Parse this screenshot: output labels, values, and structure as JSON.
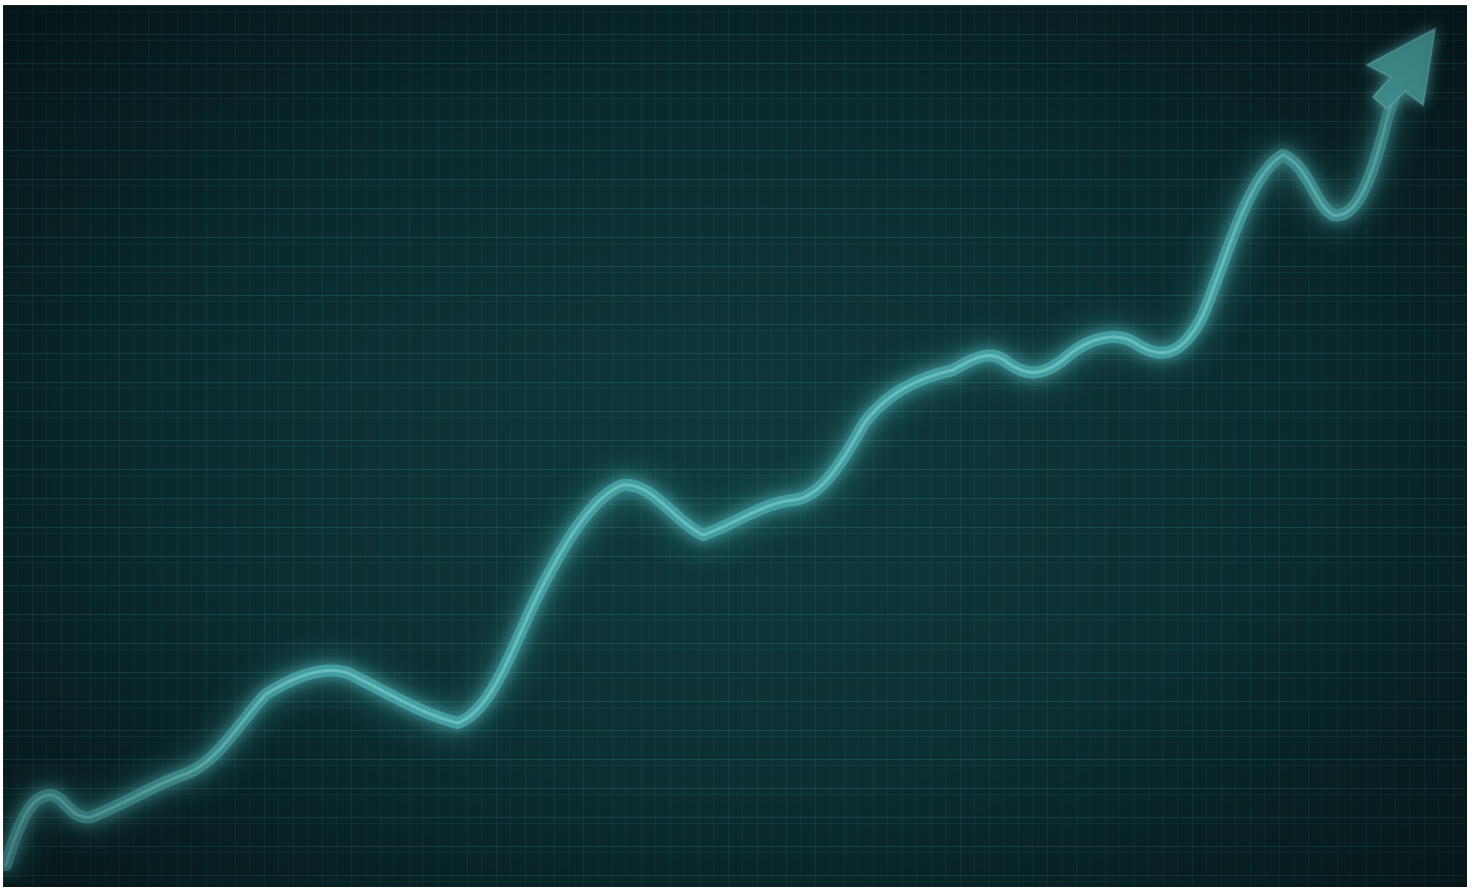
{
  "image": {
    "description_colors": {
      "background": "#0a2b2e",
      "grid": "#5abebe",
      "trend_line": "#4fb3b3",
      "trend_glow": "#7fe0e0"
    },
    "icons": [
      "trend-arrow-icon"
    ]
  }
}
